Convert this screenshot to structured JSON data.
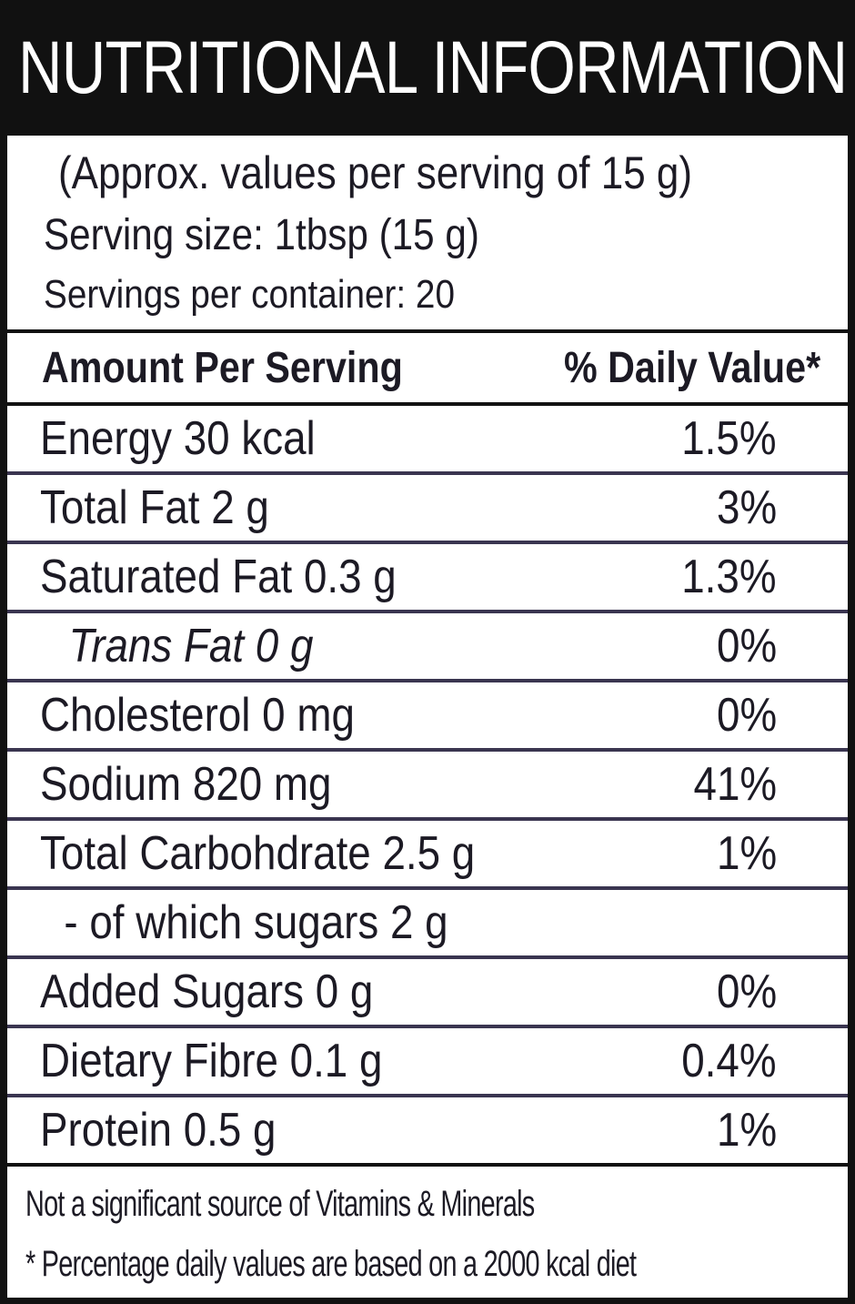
{
  "header": {
    "title": "NUTRITIONAL INFORMATION"
  },
  "serving": {
    "lines": [
      "(Approx. values per serving of 15 g)",
      "Serving size: 1tbsp (15 g)",
      "Servings per container: 20"
    ]
  },
  "table": {
    "header": [
      "Amount Per Serving",
      "% Daily Value*"
    ],
    "rows": [
      {
        "name": "Energy 30 kcal",
        "dv": "1.5%"
      },
      {
        "name": "Total Fat 2 g",
        "dv": "3%"
      },
      {
        "name": "Saturated Fat 0.3 g",
        "dv": "1.3%"
      },
      {
        "name": "Trans Fat 0 g",
        "dv": "0%",
        "italic": true
      },
      {
        "name": "Cholesterol 0 mg",
        "dv": "0%"
      },
      {
        "name": "Sodium 820 mg",
        "dv": "41%"
      },
      {
        "name": "Total Carbohdrate 2.5 g",
        "dv": "1%"
      },
      {
        "name": "- of which sugars 2 g",
        "indent": true
      },
      {
        "name": "Added Sugars 0 g",
        "dv": "0%"
      },
      {
        "name": "Dietary Fibre 0.1 g",
        "dv": "0.4%"
      },
      {
        "name": "Protein 0.5 g",
        "dv": "1%"
      }
    ]
  },
  "footer": {
    "lines": [
      "Not a significant source of Vitamins & Minerals",
      "* Percentage daily values are based on a 2000 kcal diet"
    ]
  }
}
